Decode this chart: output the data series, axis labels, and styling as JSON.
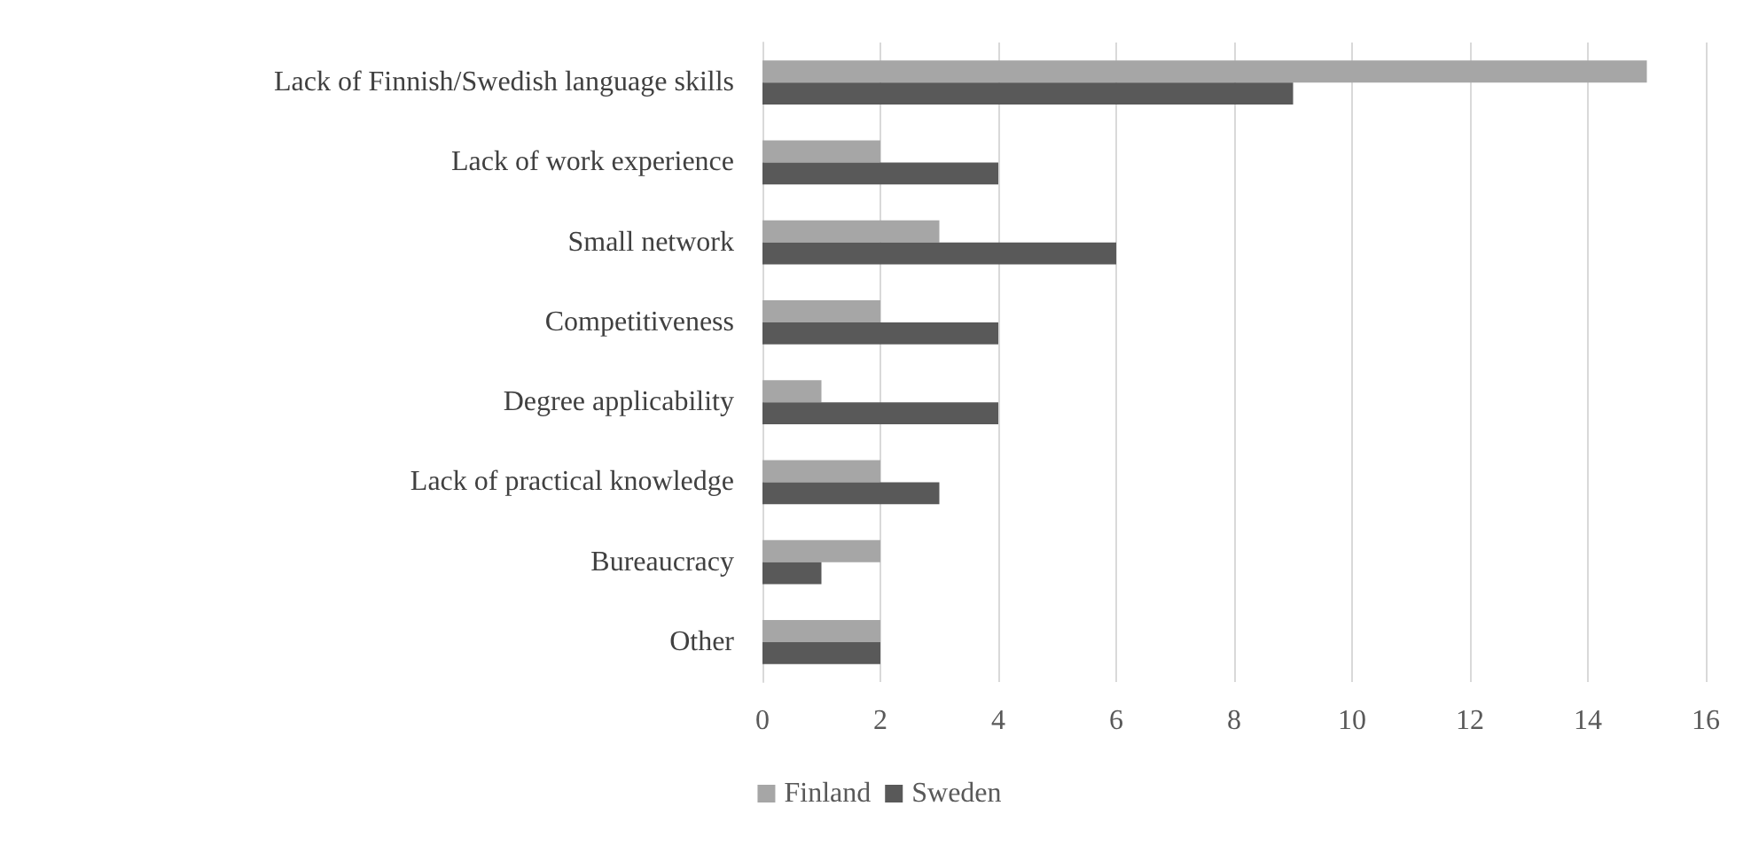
{
  "chart_data": {
    "type": "bar",
    "orientation": "horizontal",
    "categories": [
      "Lack of Finnish/Swedish language skills",
      "Lack of work experience",
      "Small network",
      "Competitiveness",
      "Degree applicability",
      "Lack of practical knowledge",
      "Bureaucracy",
      "Other"
    ],
    "series": [
      {
        "name": "Finland",
        "color": "#a6a6a6",
        "values": [
          15,
          2,
          3,
          2,
          1,
          2,
          2,
          2
        ]
      },
      {
        "name": "Sweden",
        "color": "#595959",
        "values": [
          9,
          4,
          6,
          4,
          4,
          3,
          1,
          2
        ]
      }
    ],
    "xlim": [
      0,
      16
    ],
    "xticks": [
      0,
      2,
      4,
      6,
      8,
      10,
      12,
      14,
      16
    ],
    "grid": "x",
    "legend": "bottom"
  }
}
